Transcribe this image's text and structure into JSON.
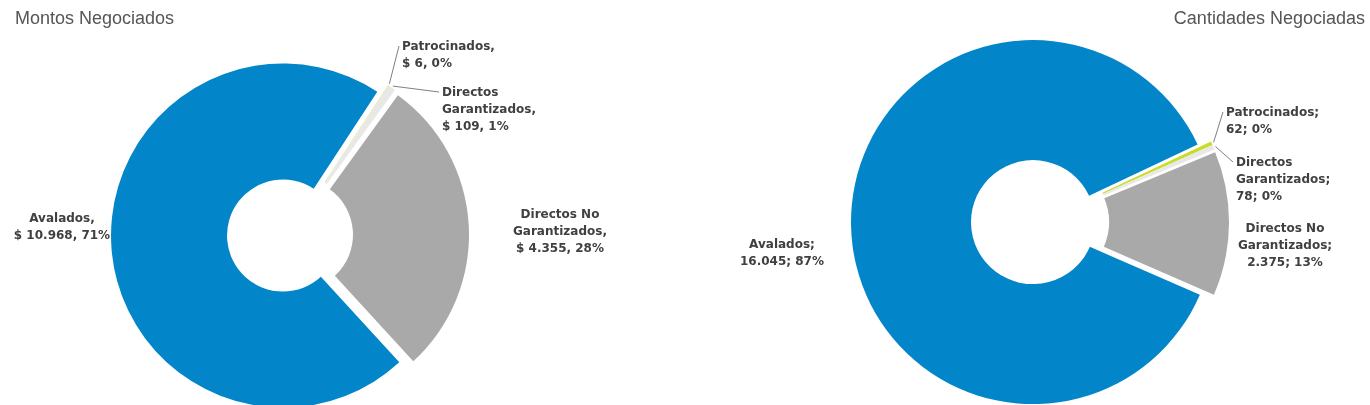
{
  "chart_data": [
    {
      "type": "donut",
      "title": "Montos Negociados",
      "categories": [
        "Patrocinados",
        "Directos Garantizados",
        "Directos No Garantizados",
        "Avalados"
      ],
      "values": [
        6,
        109,
        4355,
        10968
      ],
      "colors": [
        "#c8dc2a",
        "#e8e8e8",
        "#a9a9a9",
        "#0286c9"
      ],
      "value_labels": [
        ", $ 6, 0%",
        ", $ 109, 1%",
        ", $ 4.355, 28%",
        ", $ 10.968, 71%"
      ]
    },
    {
      "type": "donut",
      "title": "Cantidades Negociadas",
      "categories": [
        "Patrocinados",
        "Directos Garantizados",
        "Directos No Garantizados",
        "Avalados"
      ],
      "values": [
        62,
        78,
        2375,
        16045
      ],
      "colors": [
        "#c8dc2a",
        "#e8e8e8",
        "#a9a9a9",
        "#0286c9"
      ],
      "value_labels": [
        "; 62; 0%",
        "; 78; 0%",
        "; 2.375; 13%",
        "; 16.045; 87%"
      ]
    }
  ]
}
